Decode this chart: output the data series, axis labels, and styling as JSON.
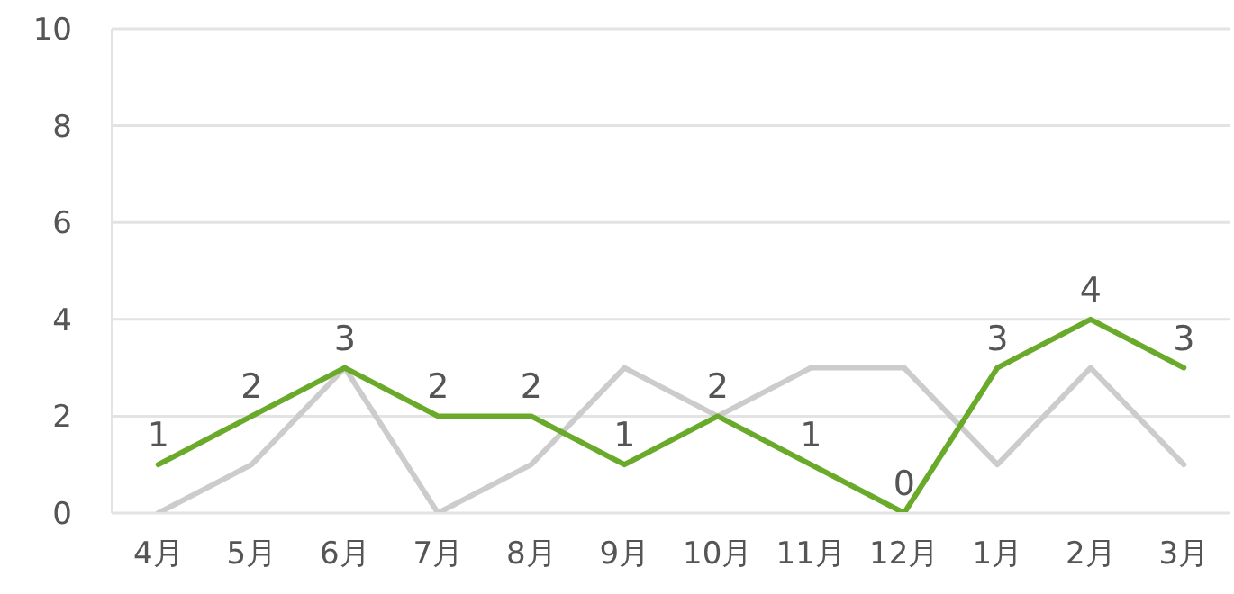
{
  "chart_data": {
    "type": "line",
    "categories": [
      "4月",
      "5月",
      "6月",
      "7月",
      "8月",
      "9月",
      "10月",
      "11月",
      "12月",
      "1月",
      "2月",
      "3月"
    ],
    "series": [
      {
        "color": "#cccccc",
        "values": [
          0,
          1,
          3,
          0,
          1,
          3,
          2,
          3,
          3,
          1,
          3,
          1
        ]
      },
      {
        "color": "#6aaa2a",
        "values": [
          1,
          2,
          3,
          2,
          2,
          1,
          2,
          1,
          0,
          3,
          4,
          3
        ],
        "value_labels": [
          "1",
          "2",
          "3",
          "2",
          "2",
          "1",
          "2",
          "1",
          "0",
          "3",
          "4",
          "3"
        ]
      }
    ],
    "ylim": [
      0,
      10
    ],
    "yticks": [
      0,
      2,
      4,
      6,
      8,
      10
    ],
    "grid": "y"
  }
}
